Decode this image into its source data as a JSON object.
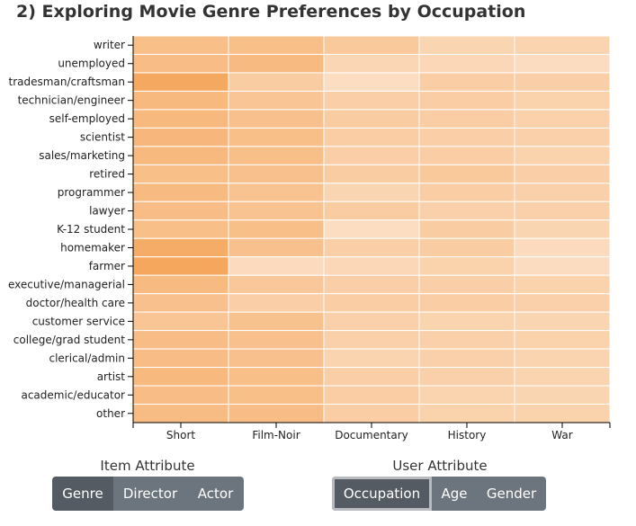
{
  "title": "2) Exploring Movie Genre Preferences by Occupation",
  "chart_data": {
    "type": "heatmap",
    "x_categories": [
      "Short",
      "Film-Noir",
      "Documentary",
      "History",
      "War"
    ],
    "y_categories": [
      "writer",
      "unemployed",
      "tradesman/craftsman",
      "technician/engineer",
      "self-employed",
      "scientist",
      "sales/marketing",
      "retired",
      "programmer",
      "lawyer",
      "K-12 student",
      "homemaker",
      "farmer",
      "executive/managerial",
      "doctor/health care",
      "customer service",
      "college/grad student",
      "clerical/admin",
      "artist",
      "academic/educator",
      "other"
    ],
    "values": [
      [
        0.58,
        0.58,
        0.44,
        0.28,
        0.3
      ],
      [
        0.6,
        0.64,
        0.26,
        0.24,
        0.18
      ],
      [
        0.88,
        0.4,
        0.16,
        0.38,
        0.35
      ],
      [
        0.66,
        0.5,
        0.36,
        0.38,
        0.32
      ],
      [
        0.66,
        0.56,
        0.4,
        0.38,
        0.33
      ],
      [
        0.68,
        0.58,
        0.38,
        0.36,
        0.34
      ],
      [
        0.66,
        0.58,
        0.36,
        0.38,
        0.32
      ],
      [
        0.58,
        0.56,
        0.4,
        0.44,
        0.37
      ],
      [
        0.64,
        0.52,
        0.28,
        0.38,
        0.34
      ],
      [
        0.6,
        0.52,
        0.4,
        0.34,
        0.34
      ],
      [
        0.58,
        0.58,
        0.16,
        0.4,
        0.28
      ],
      [
        0.84,
        0.56,
        0.36,
        0.4,
        0.2
      ],
      [
        0.9,
        0.2,
        0.24,
        0.32,
        0.18
      ],
      [
        0.64,
        0.46,
        0.36,
        0.36,
        0.32
      ],
      [
        0.56,
        0.36,
        0.38,
        0.38,
        0.34
      ],
      [
        0.5,
        0.54,
        0.34,
        0.3,
        0.28
      ],
      [
        0.6,
        0.56,
        0.34,
        0.34,
        0.32
      ],
      [
        0.6,
        0.56,
        0.3,
        0.34,
        0.3
      ],
      [
        0.66,
        0.58,
        0.36,
        0.34,
        0.3
      ],
      [
        0.6,
        0.58,
        0.38,
        0.3,
        0.28
      ],
      [
        0.62,
        0.6,
        0.38,
        0.32,
        0.32
      ]
    ],
    "color_low": "#fde9d8",
    "color_high": "#f4a050",
    "grid": false
  },
  "controls": {
    "item_label": "Item Attribute",
    "item_buttons": [
      "Genre",
      "Director",
      "Actor"
    ],
    "item_selected": "Genre",
    "user_label": "User Attribute",
    "user_buttons": [
      "Occupation",
      "Age",
      "Gender"
    ],
    "user_selected": "Occupation",
    "button_color": "#6c757d",
    "button_active_color": "#545b62"
  }
}
